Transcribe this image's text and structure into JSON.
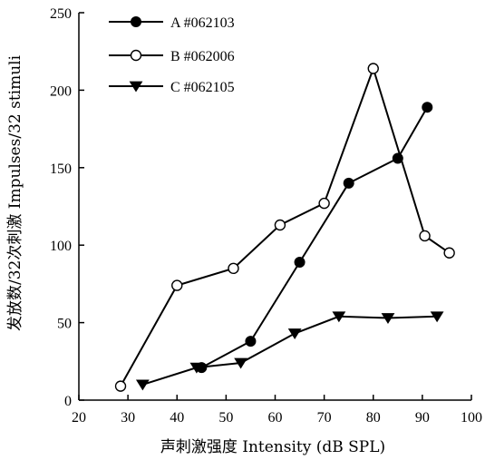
{
  "chart_data": {
    "type": "line",
    "xlabel": "声刺激强度 Intensity (dB SPL)",
    "ylabel": "发放数/32次刺激 Impulses/32 stimuli",
    "xlim": [
      20,
      100
    ],
    "ylim": [
      0,
      250
    ],
    "xticks": [
      20,
      30,
      40,
      50,
      60,
      70,
      80,
      90,
      100
    ],
    "yticks": [
      0,
      50,
      100,
      150,
      200,
      250
    ],
    "grid": false,
    "legend_position": "top-left",
    "series": [
      {
        "name": "A #062103",
        "marker": "filled-circle",
        "x": [
          45,
          55,
          65,
          75,
          85,
          91
        ],
        "y": [
          21,
          38,
          89,
          140,
          156,
          189
        ]
      },
      {
        "name": "B #062006",
        "marker": "open-circle",
        "x": [
          28.5,
          40,
          51.5,
          61,
          70,
          80,
          90.5,
          95.5
        ],
        "y": [
          9,
          74,
          85,
          113,
          127,
          214,
          106,
          95
        ]
      },
      {
        "name": "C #062105",
        "marker": "filled-triangle-down",
        "x": [
          33,
          44,
          53,
          64,
          73,
          83,
          93
        ],
        "y": [
          10,
          21,
          24,
          43,
          54,
          53,
          54
        ]
      }
    ]
  }
}
